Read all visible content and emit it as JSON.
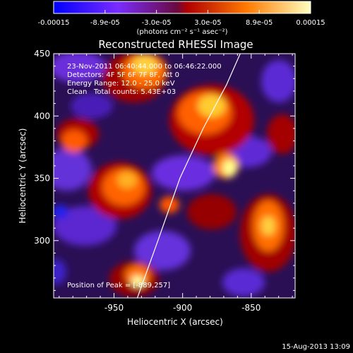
{
  "colorbar": {
    "tick_labels": [
      "-0.00015",
      "-8.9e-05",
      "-3.0e-05",
      "3.0e-05",
      "8.9e-05",
      "0.00015"
    ],
    "unit_label": "(photons cm⁻² s⁻¹ asec⁻²)",
    "colors": [
      "#0000ff",
      "#7a2cff",
      "#7a0a3a",
      "#d00000",
      "#ff8800",
      "#ffff99"
    ]
  },
  "header": {
    "title": "Reconstructed RHESSI Image"
  },
  "annotations": {
    "time_range": "23-Nov-2011 06:40:44.000 to 06:46:22.000",
    "detectors": "Detectors: 4F 5F 6F 7F 8F, Att 0",
    "energy_range": "Energy Range: 12.0 - 25.0 keV",
    "clean": "Clean   Total counts: 5.43E+03",
    "peak": "Position of Peak = [-889,257]"
  },
  "footer": {
    "date": "15-Aug-2013 13:09"
  },
  "chart_data": {
    "type": "heatmap",
    "title": "Reconstructed RHESSI Image",
    "xlabel": "Heliocentric X (arcsec)",
    "ylabel": "Heliocentric Y (arcsec)",
    "xlim": [
      -994,
      -818
    ],
    "ylim": [
      254,
      450
    ],
    "x_ticks": [
      -950,
      -900,
      -850
    ],
    "y_ticks": [
      300,
      350,
      400,
      450
    ],
    "x_tick_labels": [
      "-950",
      "-900",
      "-850"
    ],
    "y_tick_labels": [
      "300",
      "350",
      "400",
      "450"
    ],
    "colormap_range": [
      -0.00015,
      0.00015
    ],
    "limb_curve": [
      [
        -933,
        254
      ],
      [
        -918,
        300
      ],
      [
        -902,
        350
      ],
      [
        -885,
        390
      ],
      [
        -868,
        425
      ],
      [
        -858,
        450
      ]
    ],
    "peak_position": [
      -889,
      257
    ]
  }
}
